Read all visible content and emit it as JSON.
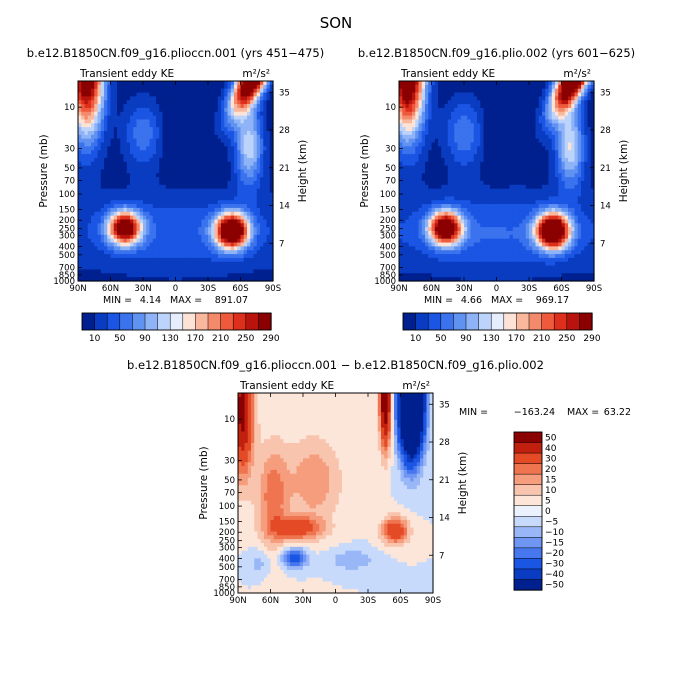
{
  "figure": {
    "title": "SON",
    "panel_left": {
      "title": "b.e12.B1850CN.f09_g16.plioccn.001 (yrs 451−475)",
      "variable": "Transient eddy KE",
      "units": "m²/s²",
      "min_label": "MIN =",
      "min_value": "4.14",
      "max_label": "MAX =",
      "max_value": "891.07"
    },
    "panel_right": {
      "title": "b.e12.B1850CN.f09_g16.plio.002 (yrs 601−625)",
      "variable": "Transient eddy KE",
      "units": "m²/s²",
      "min_label": "MIN =",
      "min_value": "4.66",
      "max_label": "MAX =",
      "max_value": "969.17"
    },
    "panel_diff": {
      "title": "b.e12.B1850CN.f09_g16.plioccn.001 − b.e12.B1850CN.f09_g16.plio.002",
      "variable": "Transient eddy KE",
      "units": "m²/s²",
      "min_label": "MIN =",
      "min_value": "−163.24",
      "max_label": "MAX =",
      "max_value": "63.22"
    }
  },
  "chart_data": [
    {
      "type": "heatmap",
      "title": "b.e12.B1850CN.f09_g16.plioccn.001 (yrs 451−475)",
      "xlabel": "",
      "ylabel": "Pressure (mb)",
      "y2label": "Height (km)",
      "x_ticks": [
        "90N",
        "60N",
        "30N",
        "0",
        "30S",
        "60S",
        "90S"
      ],
      "x_tick_values": [
        90,
        60,
        30,
        0,
        -30,
        -60,
        -90
      ],
      "y_ticks": [
        "10",
        "30",
        "50",
        "70",
        "100",
        "150",
        "200",
        "250",
        "300",
        "400",
        "500",
        "700",
        "850",
        "1000"
      ],
      "y_tick_values": [
        10,
        30,
        50,
        70,
        100,
        150,
        200,
        250,
        300,
        400,
        500,
        700,
        850,
        1000
      ],
      "y2_ticks": [
        "35",
        "28",
        "21",
        "14",
        "7"
      ],
      "y2_tick_values": [
        35,
        28,
        21,
        14,
        7
      ],
      "ylim": [
        1000,
        5
      ],
      "levels": [
        10,
        30,
        50,
        70,
        90,
        110,
        130,
        150,
        170,
        190,
        210,
        230,
        250,
        270,
        290
      ],
      "colorbar_labels": [
        "10",
        "50",
        "90",
        "130",
        "170",
        "210",
        "250",
        "290"
      ],
      "min": 4.14,
      "max": 891.07
    },
    {
      "type": "heatmap",
      "title": "b.e12.B1850CN.f09_g16.plio.002 (yrs 601−625)",
      "xlabel": "",
      "ylabel": "Pressure (mb)",
      "y2label": "Height (km)",
      "x_ticks": [
        "90N",
        "60N",
        "30N",
        "0",
        "30S",
        "60S",
        "90S"
      ],
      "x_tick_values": [
        90,
        60,
        30,
        0,
        -30,
        -60,
        -90
      ],
      "y_ticks": [
        "10",
        "30",
        "50",
        "70",
        "100",
        "150",
        "200",
        "250",
        "300",
        "400",
        "500",
        "700",
        "850",
        "1000"
      ],
      "y_tick_values": [
        10,
        30,
        50,
        70,
        100,
        150,
        200,
        250,
        300,
        400,
        500,
        700,
        850,
        1000
      ],
      "y2_ticks": [
        "35",
        "28",
        "21",
        "14",
        "7"
      ],
      "y2_tick_values": [
        35,
        28,
        21,
        14,
        7
      ],
      "ylim": [
        1000,
        5
      ],
      "levels": [
        10,
        30,
        50,
        70,
        90,
        110,
        130,
        150,
        170,
        190,
        210,
        230,
        250,
        270,
        290
      ],
      "colorbar_labels": [
        "10",
        "50",
        "90",
        "130",
        "170",
        "210",
        "250",
        "290"
      ],
      "min": 4.66,
      "max": 969.17
    },
    {
      "type": "heatmap",
      "title": "b.e12.B1850CN.f09_g16.plioccn.001 − b.e12.B1850CN.f09_g16.plio.002",
      "xlabel": "",
      "ylabel": "Pressure (mb)",
      "y2label": "Height (km)",
      "x_ticks": [
        "90N",
        "60N",
        "30N",
        "0",
        "30S",
        "60S",
        "90S"
      ],
      "x_tick_values": [
        90,
        60,
        30,
        0,
        -30,
        -60,
        -90
      ],
      "y_ticks": [
        "10",
        "30",
        "50",
        "70",
        "100",
        "150",
        "200",
        "250",
        "300",
        "400",
        "500",
        "700",
        "850",
        "1000"
      ],
      "y_tick_values": [
        10,
        30,
        50,
        70,
        100,
        150,
        200,
        250,
        300,
        400,
        500,
        700,
        850,
        1000
      ],
      "y2_ticks": [
        "35",
        "28",
        "21",
        "14",
        "7"
      ],
      "y2_tick_values": [
        35,
        28,
        21,
        14,
        7
      ],
      "ylim": [
        1000,
        5
      ],
      "levels": [
        -50,
        -40,
        -30,
        -20,
        -15,
        -10,
        -5,
        0,
        5,
        10,
        15,
        20,
        30,
        40,
        50
      ],
      "colorbar_labels": [
        "50",
        "40",
        "30",
        "20",
        "15",
        "10",
        "5",
        "0",
        "−5",
        "−10",
        "−15",
        "−20",
        "−30",
        "−40",
        "−50"
      ],
      "min": -163.24,
      "max": 63.22
    }
  ],
  "palettes": {
    "sequential": [
      "#00208f",
      "#0a3cc2",
      "#1a55e3",
      "#3b73ee",
      "#6092f2",
      "#8eb3f7",
      "#bcd3fb",
      "#e6eefd",
      "#fde3d6",
      "#f9b89e",
      "#f48a6c",
      "#ee5a3b",
      "#de2f1c",
      "#b8140d",
      "#8b0000"
    ],
    "diverging": [
      "#00208f",
      "#0a3cc2",
      "#1a55e3",
      "#4677ee",
      "#6e96f2",
      "#99b7f7",
      "#c8dafc",
      "#eaf2fe",
      "#fce6da",
      "#f9c4ad",
      "#f59d7d",
      "#ef7450",
      "#e44a26",
      "#c2200f",
      "#8b0000"
    ]
  }
}
